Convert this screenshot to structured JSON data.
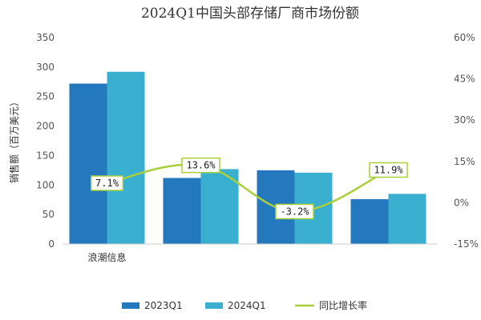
{
  "chart_data": {
    "type": "bar",
    "title": "2024Q1中国头部存储厂商市场份额",
    "ylabel": "销售额（百万美元）",
    "categories": [
      "浪潮信息",
      "",
      "",
      ""
    ],
    "series": [
      {
        "name": "2023Q1",
        "values": [
          272,
          112,
          125,
          76
        ],
        "color": "#2478be"
      },
      {
        "name": "2024Q1",
        "values": [
          292,
          127,
          121,
          85
        ],
        "color": "#3aafd0"
      }
    ],
    "line_series": {
      "name": "同比增长率",
      "values": [
        7.1,
        13.6,
        -3.2,
        11.9
      ],
      "labels": [
        "7.1%",
        "13.6%",
        "-3.2%",
        "11.9%"
      ],
      "color": "#a9cf3a"
    },
    "ylim": [
      0,
      350
    ],
    "y_ticks": [
      "0",
      "50",
      "100",
      "150",
      "200",
      "250",
      "300",
      "350"
    ],
    "y2lim": [
      -15,
      60
    ],
    "y2_ticks": [
      "-15%",
      "0%",
      "15%",
      "30%",
      "45%",
      "60%"
    ],
    "grid": false,
    "legend": "bottom"
  }
}
